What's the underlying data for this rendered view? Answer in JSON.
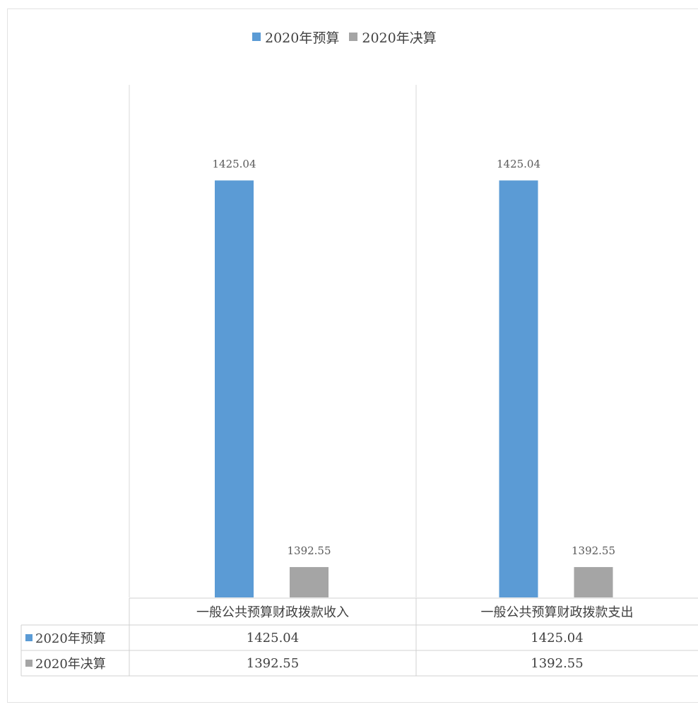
{
  "chart_data": {
    "type": "bar",
    "categories": [
      "一般公共预算财政拨款收入",
      "一般公共预算财政拨款支出"
    ],
    "series": [
      {
        "name": "2020年预算",
        "values": [
          1425.04,
          1425.04
        ],
        "color": "#5b9bd5"
      },
      {
        "name": "2020年决算",
        "values": [
          1392.55,
          1392.55
        ],
        "color": "#a5a5a5"
      }
    ],
    "data_labels": [
      [
        "1425.04",
        "1425.04"
      ],
      [
        "1392.55",
        "1392.55"
      ]
    ],
    "table_values": [
      [
        "1425.04",
        "1425.04"
      ],
      [
        "1392.55",
        "1392.55"
      ]
    ],
    "ylim": [
      1390,
      1430
    ],
    "legend_position": "top",
    "grid": false
  }
}
